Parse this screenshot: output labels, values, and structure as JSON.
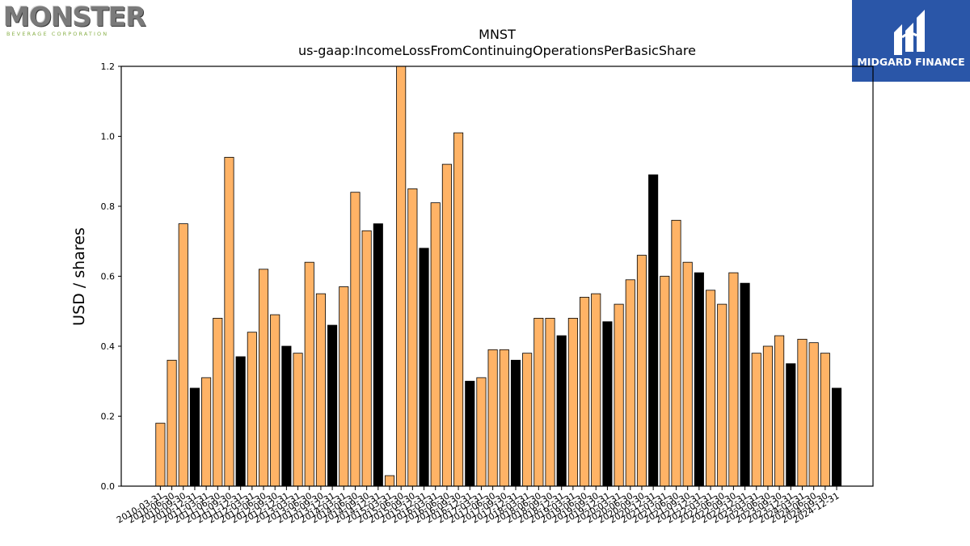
{
  "logos": {
    "left": {
      "name": "MONSTER",
      "subtitle": "BEVERAGE CORPORATION"
    },
    "right": {
      "name": "MIDGARD FINANCE",
      "color": "#2a56a8"
    }
  },
  "chart_data": {
    "type": "bar",
    "title": "MNST",
    "subtitle": "us-gaap:IncomeLossFromContinuingOperationsPerBasicShare",
    "xlabel": "",
    "ylabel": "USD / shares",
    "ylim": [
      0,
      1.2
    ],
    "yticks": [
      "0.0",
      "0.2",
      "0.4",
      "0.6",
      "0.8",
      "1.0",
      "1.2"
    ],
    "grid": false,
    "colors": {
      "quarter": "#ffb366",
      "annual": "#000000"
    },
    "categories": [
      "2010-03-31",
      "2010-06-30",
      "2010-09-30",
      "2010-12-31",
      "2011-03-31",
      "2011-06-30",
      "2011-09-30",
      "2011-12-31",
      "2012-03-31",
      "2012-06-30",
      "2012-09-30",
      "2012-12-31",
      "2013-03-31",
      "2013-06-30",
      "2013-09-30",
      "2013-12-31",
      "2014-03-31",
      "2014-06-30",
      "2014-09-30",
      "2014-12-31",
      "2015-03-31",
      "2015-06-30",
      "2015-09-30",
      "2015-12-31",
      "2016-03-31",
      "2016-06-30",
      "2016-09-30",
      "2016-12-31",
      "2017-03-31",
      "2017-06-30",
      "2017-09-30",
      "2017-12-31",
      "2018-03-31",
      "2018-06-30",
      "2018-09-30",
      "2018-12-31",
      "2019-03-31",
      "2019-06-30",
      "2019-09-30",
      "2019-12-31",
      "2020-03-31",
      "2020-06-30",
      "2020-09-30",
      "2020-12-31",
      "2021-03-31",
      "2021-06-30",
      "2021-09-30",
      "2021-12-31",
      "2022-03-31",
      "2022-06-30",
      "2022-09-30",
      "2022-12-31",
      "2023-03-31",
      "2023-06-30",
      "2023-09-30",
      "2023-12-31",
      "2024-03-31",
      "2024-06-30",
      "2024-09-30",
      "2024-12-31"
    ],
    "values": [
      0.18,
      0.36,
      0.75,
      0.28,
      0.31,
      0.48,
      0.94,
      0.37,
      0.44,
      0.62,
      0.49,
      0.4,
      0.38,
      0.64,
      0.55,
      0.46,
      0.57,
      0.84,
      0.73,
      0.75,
      0.03,
      1.21,
      0.85,
      0.68,
      0.81,
      0.92,
      1.01,
      0.3,
      0.31,
      0.39,
      0.39,
      0.36,
      0.38,
      0.48,
      0.48,
      0.43,
      0.48,
      0.54,
      0.55,
      0.47,
      0.52,
      0.59,
      0.66,
      0.89,
      0.6,
      0.76,
      0.64,
      0.61,
      0.56,
      0.52,
      0.61,
      0.58,
      0.38,
      0.4,
      0.43,
      0.35,
      0.42,
      0.41,
      0.38,
      0.28
    ],
    "annual": [
      false,
      false,
      false,
      true,
      false,
      false,
      false,
      true,
      false,
      false,
      false,
      true,
      false,
      false,
      false,
      true,
      false,
      false,
      false,
      true,
      false,
      false,
      false,
      true,
      false,
      false,
      false,
      true,
      false,
      false,
      false,
      true,
      false,
      false,
      false,
      true,
      false,
      false,
      false,
      true,
      false,
      false,
      false,
      true,
      false,
      false,
      false,
      true,
      false,
      false,
      false,
      true,
      false,
      false,
      false,
      true,
      false,
      false,
      false,
      true
    ]
  }
}
